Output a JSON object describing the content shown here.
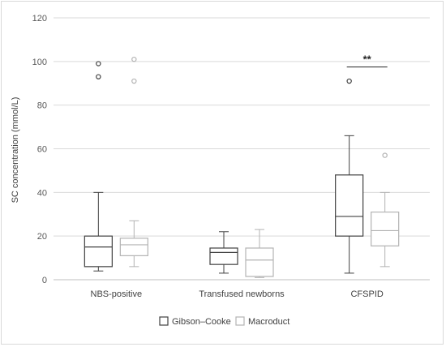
{
  "chart_data": {
    "type": "box",
    "title": "",
    "ylabel": "SC concentration (mmol/L)",
    "xlabel": "",
    "ylim": [
      0,
      120
    ],
    "yticks": [
      0,
      20,
      40,
      60,
      80,
      100,
      120
    ],
    "grid": "horizontal",
    "legend_position": "bottom",
    "categories": [
      "NBS-positive",
      "Transfused newborns",
      "CFSPID"
    ],
    "series": [
      {
        "name": "Gibson–Cooke",
        "color": "#404040",
        "boxes": [
          {
            "min": 4,
            "q1": 6,
            "median": 15,
            "q3": 20,
            "max": 40,
            "outliers": [
              93,
              99
            ]
          },
          {
            "min": 3,
            "q1": 7,
            "median": 12.5,
            "q3": 14.5,
            "max": 22,
            "outliers": []
          },
          {
            "min": 3,
            "q1": 20,
            "median": 29,
            "q3": 48,
            "max": 66,
            "outliers": [
              91
            ]
          }
        ]
      },
      {
        "name": "Macroduct",
        "color": "#b3b3b3",
        "boxes": [
          {
            "min": 6,
            "q1": 11,
            "median": 16,
            "q3": 19,
            "max": 27,
            "outliers": [
              91,
              101
            ]
          },
          {
            "min": 1,
            "q1": 1.5,
            "median": 9,
            "q3": 14.5,
            "max": 23,
            "outliers": []
          },
          {
            "min": 6,
            "q1": 15.5,
            "median": 22.5,
            "q3": 31,
            "max": 40,
            "outliers": [
              57
            ]
          }
        ]
      }
    ],
    "annotations": [
      {
        "text": "**",
        "category": "CFSPID",
        "y": 97.5
      }
    ]
  }
}
